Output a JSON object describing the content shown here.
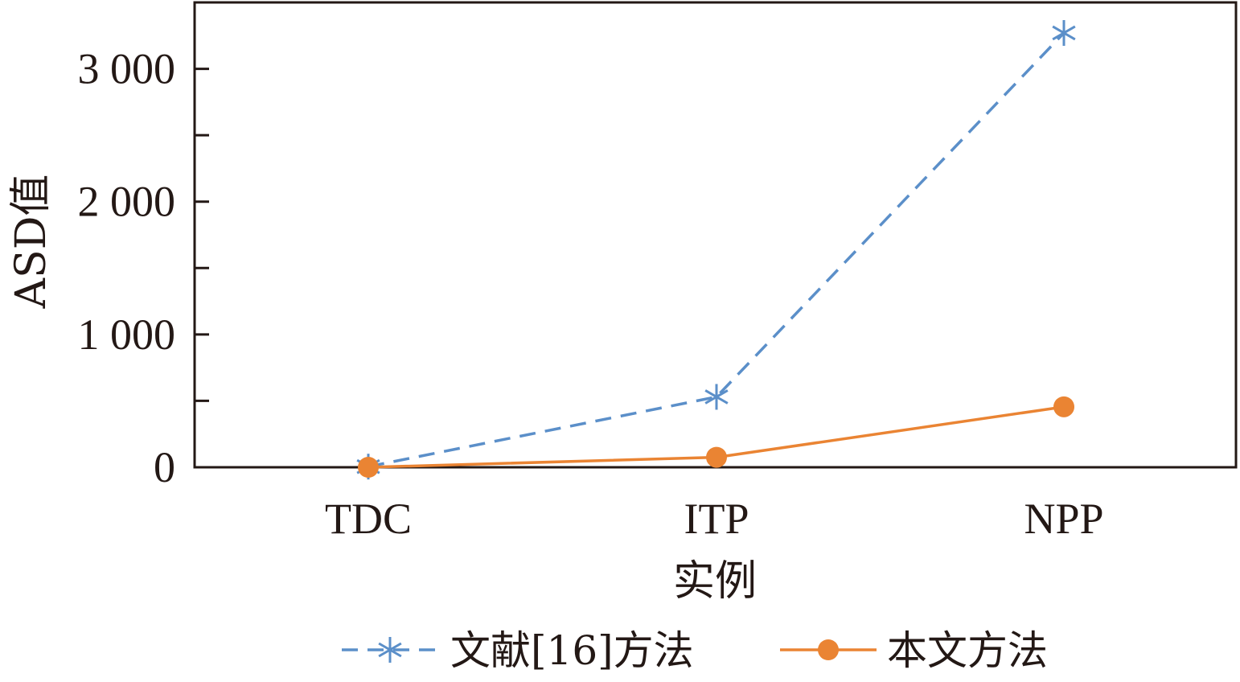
{
  "chart_data": {
    "type": "line",
    "title": "",
    "xlabel": "实例",
    "ylabel": "ASD值",
    "categories": [
      "TDC",
      "ITP",
      "NPP"
    ],
    "ylim": [
      0,
      3500
    ],
    "yticks": [
      0,
      1000,
      2000,
      3000
    ],
    "ytick_labels": [
      "0",
      "1 000",
      "2 000",
      "3 000"
    ],
    "minor_ytick_step": 500,
    "grid": false,
    "legend_position": "bottom",
    "series": [
      {
        "name": "文献[16]方法",
        "values": [
          5,
          530,
          3270
        ],
        "color": "#5b8fc9",
        "line_style": "dashed",
        "marker": "asterisk"
      },
      {
        "name": "本文方法",
        "values": [
          0,
          75,
          455
        ],
        "color": "#ea8433",
        "line_style": "solid",
        "marker": "circle"
      }
    ]
  }
}
